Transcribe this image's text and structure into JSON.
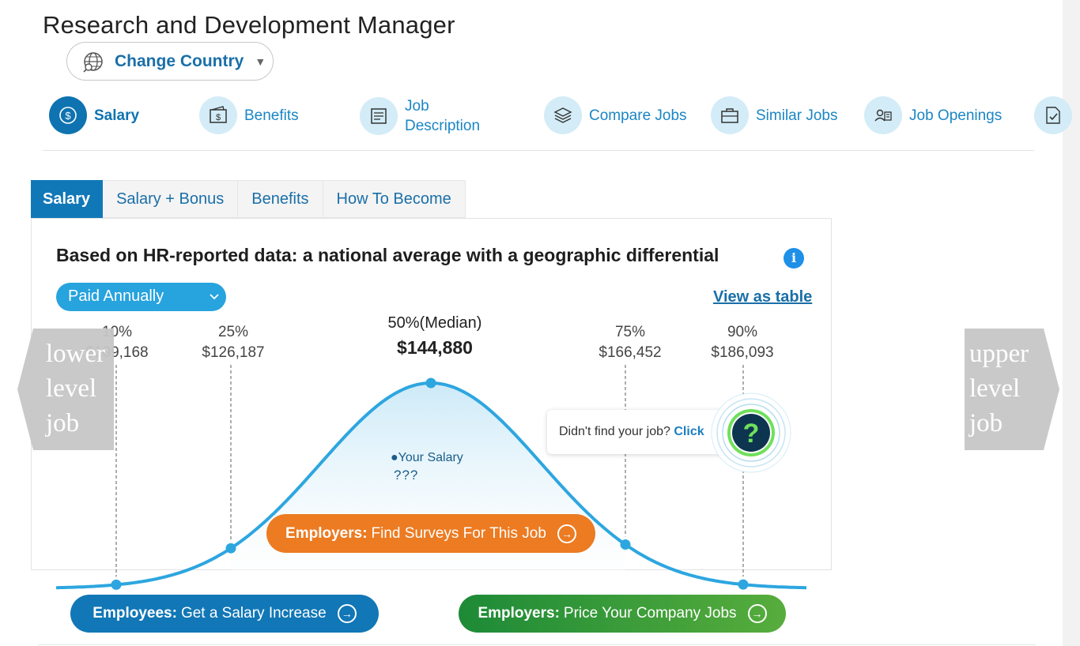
{
  "page": {
    "title": "Research and Development Manager"
  },
  "country": {
    "label": "Change Country",
    "caret": "▼",
    "icon": "globe-icon"
  },
  "nav": [
    {
      "label": "Salary",
      "icon": "dollar-icon",
      "active": true
    },
    {
      "label": "Benefits",
      "icon": "wallet-dollar-icon"
    },
    {
      "label": "Job Description",
      "icon": "document-icon"
    },
    {
      "label": "Compare Jobs",
      "icon": "layers-icon"
    },
    {
      "label": "Similar Jobs",
      "icon": "briefcase-icon"
    },
    {
      "label": "Job Openings",
      "icon": "id-card-icon"
    },
    {
      "label": "",
      "icon": "checklist-icon"
    }
  ],
  "tabs": [
    "Salary",
    "Salary + Bonus",
    "Benefits",
    "How To Become"
  ],
  "chart": {
    "heading": "Based on HR-reported data: a national average with a geographic differential",
    "info_icon": "i",
    "pay_period": "Paid Annually",
    "view_table": "View as table"
  },
  "chart_data": {
    "type": "area",
    "percentiles": [
      {
        "label": "10%",
        "value": 109168,
        "display": "$109,168"
      },
      {
        "label": "25%",
        "value": 126187,
        "display": "$126,187"
      },
      {
        "label": "50%(Median)",
        "value": 144880,
        "display": "$144,880"
      },
      {
        "label": "75%",
        "value": 166452,
        "display": "$166,452"
      },
      {
        "label": "90%",
        "value": 186093,
        "display": "$186,093"
      }
    ],
    "your_salary": {
      "label": "Your Salary",
      "value": "???"
    },
    "colors": {
      "curve": "#2da6e0",
      "fill_top": "#cdeaf8"
    }
  },
  "tooltip": {
    "text": "Didn't find your job?",
    "link": "Click",
    "badge": "?"
  },
  "side_nav": {
    "left": "lower level job",
    "right": "upper level job"
  },
  "buttons": {
    "surveys": {
      "strong": "Employers:",
      "text": "Find Surveys For This Job"
    },
    "increase": {
      "strong": "Employees:",
      "text": "Get a Salary Increase"
    },
    "price": {
      "strong": "Employers:",
      "text": "Price Your Company Jobs"
    },
    "arrow": "→"
  },
  "colors": {
    "brand_blue": "#1178b8",
    "accent_orange": "#ec7b22",
    "accent_green": "#1d8a37",
    "help_dark": "#0e3550",
    "help_ring": "#6fe05b"
  }
}
